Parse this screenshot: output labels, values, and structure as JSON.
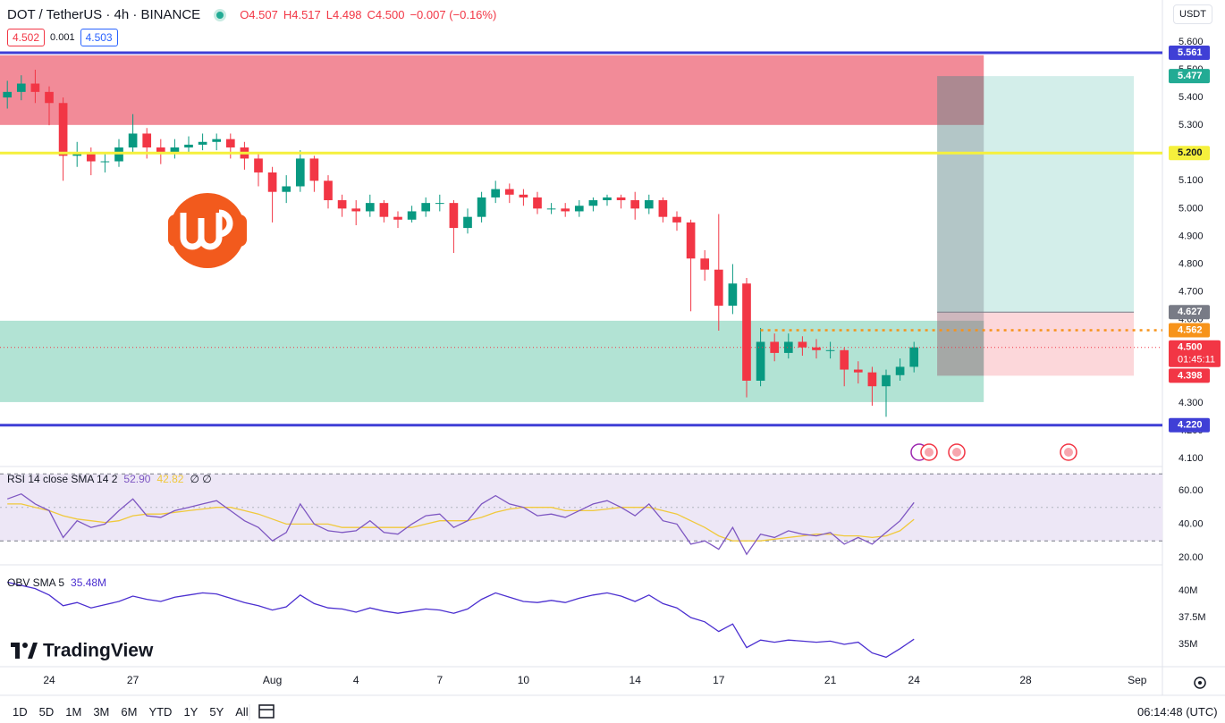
{
  "header": {
    "symbol": "DOT / TetherUS · 4h · BINANCE",
    "ohlc": [
      "O4.507",
      "H4.517",
      "L4.498",
      "C4.500",
      "−0.007 (−0.16%)"
    ],
    "bid": "4.502",
    "spread": "0.001",
    "ask": "4.503",
    "currency": "USDT"
  },
  "chart_data": [
    {
      "type": "candlestick",
      "x": [
        -1.5,
        -1,
        -0.5,
        0,
        0.5,
        1,
        1.5,
        2,
        2.5,
        3,
        3.5,
        4,
        4.5,
        5,
        5.5,
        6,
        6.5,
        7,
        7.5,
        8,
        8.5,
        9,
        9.5,
        10,
        10.5,
        11,
        11.5,
        12,
        12.5,
        13,
        13.5,
        14,
        14.5,
        15,
        15.5,
        16,
        16.5,
        17,
        17.5,
        18,
        18.5,
        19,
        19.5,
        20,
        20.5,
        21,
        21.5,
        22,
        22.5,
        23,
        23.5,
        24,
        24.5,
        25,
        25.5,
        26,
        26.5,
        27,
        27.5,
        28,
        28.5,
        29,
        29.5,
        30,
        30.5,
        31
      ],
      "open": [
        5.4,
        5.42,
        5.45,
        5.42,
        5.38,
        5.19,
        5.2,
        5.17,
        5.17,
        5.22,
        5.27,
        5.22,
        5.2,
        5.22,
        5.23,
        5.24,
        5.25,
        5.22,
        5.18,
        5.13,
        5.06,
        5.08,
        5.18,
        5.1,
        5.03,
        5.0,
        4.99,
        5.02,
        4.97,
        4.96,
        4.99,
        5.02,
        5.02,
        4.93,
        4.97,
        5.04,
        5.07,
        5.05,
        5.04,
        5.0,
        5.0,
        4.99,
        5.01,
        5.03,
        5.04,
        5.03,
        5.0,
        5.03,
        4.97,
        4.95,
        4.82,
        4.78,
        4.65,
        4.73,
        4.38,
        4.52,
        4.48,
        4.52,
        4.5,
        4.49,
        4.49,
        4.42,
        4.41,
        4.36,
        4.4,
        4.43
      ],
      "high": [
        5.46,
        5.48,
        5.5,
        5.44,
        5.4,
        5.24,
        5.22,
        5.2,
        5.25,
        5.34,
        5.29,
        5.25,
        5.25,
        5.26,
        5.27,
        5.27,
        5.27,
        5.24,
        5.2,
        5.15,
        5.12,
        5.21,
        5.19,
        5.12,
        5.05,
        5.03,
        5.05,
        5.03,
        4.99,
        5.01,
        5.04,
        5.05,
        5.03,
        5.0,
        5.06,
        5.1,
        5.09,
        5.07,
        5.06,
        5.02,
        5.02,
        5.03,
        5.04,
        5.05,
        5.05,
        5.06,
        5.05,
        5.04,
        4.99,
        4.96,
        4.85,
        4.98,
        4.8,
        4.75,
        4.57,
        4.55,
        4.55,
        4.54,
        4.53,
        4.52,
        4.5,
        4.45,
        4.43,
        4.42,
        4.46,
        4.52
      ],
      "low": [
        5.36,
        5.39,
        5.38,
        5.3,
        5.1,
        5.15,
        5.12,
        5.13,
        5.15,
        5.2,
        5.18,
        5.16,
        5.18,
        5.2,
        5.21,
        5.21,
        5.18,
        5.14,
        5.08,
        4.95,
        5.02,
        5.06,
        5.06,
        5.0,
        4.97,
        4.94,
        4.97,
        4.95,
        4.93,
        4.95,
        4.97,
        4.99,
        4.84,
        4.91,
        4.95,
        5.02,
        5.02,
        5.01,
        4.98,
        4.98,
        4.97,
        4.97,
        4.99,
        5.01,
        5.0,
        4.96,
        4.98,
        4.95,
        4.92,
        4.63,
        4.74,
        4.56,
        4.62,
        4.32,
        4.36,
        4.45,
        4.46,
        4.47,
        4.46,
        4.46,
        4.36,
        4.37,
        4.29,
        4.25,
        4.38,
        4.41
      ],
      "close": [
        5.42,
        5.45,
        5.42,
        5.38,
        5.19,
        5.2,
        5.17,
        5.17,
        5.22,
        5.27,
        5.22,
        5.2,
        5.22,
        5.23,
        5.24,
        5.25,
        5.22,
        5.18,
        5.13,
        5.06,
        5.08,
        5.18,
        5.1,
        5.03,
        5.0,
        4.99,
        5.02,
        4.97,
        4.96,
        4.99,
        5.02,
        5.02,
        4.93,
        4.97,
        5.04,
        5.07,
        5.05,
        5.04,
        5.0,
        5.0,
        4.99,
        5.01,
        5.03,
        5.04,
        5.03,
        5.0,
        5.03,
        4.97,
        4.95,
        4.82,
        4.78,
        4.65,
        4.73,
        4.38,
        4.52,
        4.48,
        4.52,
        4.5,
        4.49,
        4.49,
        4.42,
        4.41,
        4.36,
        4.4,
        4.43,
        4.5
      ],
      "colors": {
        "up": "#089981",
        "down": "#f23645"
      },
      "xlim": [
        -1.763,
        39.904
      ],
      "xticks": [
        {
          "value": 0,
          "label": "24"
        },
        {
          "value": 3,
          "label": "27"
        },
        {
          "value": 8,
          "label": "Aug"
        },
        {
          "value": 11,
          "label": "4"
        },
        {
          "value": 14,
          "label": "7"
        },
        {
          "value": 17,
          "label": "10"
        },
        {
          "value": 21,
          "label": "14"
        },
        {
          "value": 24,
          "label": "17"
        },
        {
          "value": 28,
          "label": "21"
        },
        {
          "value": 31,
          "label": "24"
        },
        {
          "value": 35,
          "label": "28"
        },
        {
          "value": 39,
          "label": "Sep"
        }
      ],
      "ylim": [
        4.071,
        5.751
      ],
      "yticks": [
        {
          "value": 4.1,
          "label": "4.100"
        },
        {
          "value": 4.2,
          "label": "4.200"
        },
        {
          "value": 4.3,
          "label": "4.300"
        },
        {
          "value": 4.4,
          "label": "4.400"
        },
        {
          "value": 4.5,
          "label": "4.500"
        },
        {
          "value": 4.6,
          "label": "4.600"
        },
        {
          "value": 4.7,
          "label": "4.700"
        },
        {
          "value": 4.8,
          "label": "4.800"
        },
        {
          "value": 4.9,
          "label": "4.900"
        },
        {
          "value": 5.0,
          "label": "5.000"
        },
        {
          "value": 5.1,
          "label": "5.100"
        },
        {
          "value": 5.2,
          "label": "5.200"
        },
        {
          "value": 5.3,
          "label": "5.300"
        },
        {
          "value": 5.4,
          "label": "5.400"
        },
        {
          "value": 5.5,
          "label": "5.500"
        },
        {
          "value": 5.6,
          "label": "5.600"
        }
      ],
      "zones": [
        {
          "top": 5.552,
          "bottom": 5.301,
          "x_end": 33.5,
          "color": "#f28b98"
        },
        {
          "top": 4.596,
          "bottom": 4.303,
          "x_end": 33.5,
          "color": "#b2e3d4"
        }
      ],
      "levels": [
        {
          "value": 5.561,
          "label": "5.561",
          "color": "#3f3fd6",
          "style": "solid"
        },
        {
          "value": 5.2,
          "label": "5.200",
          "color": "#f5f03c",
          "style": "solid",
          "text_color": "#131722"
        },
        {
          "value": 4.562,
          "label": "4.562",
          "color": "#f7931a",
          "style": "dotted",
          "x_start": 25.5
        },
        {
          "value": 4.5,
          "label": "4.500",
          "color": "#f23645",
          "style": "dotted-thin",
          "countdown": "01:45:11"
        },
        {
          "value": 4.22,
          "label": "4.220",
          "color": "#3f3fd6",
          "style": "solid"
        }
      ],
      "position": {
        "x_start": 31.83,
        "x_end": 38.88,
        "target": {
          "value": 5.477,
          "label": "5.477",
          "color": "#22ab94"
        },
        "entry": {
          "value": 4.627,
          "label": "4.627",
          "color": "#787b86"
        },
        "stop": {
          "value": 4.398,
          "label": "4.398",
          "color": "#f23645"
        }
      }
    },
    {
      "type": "line",
      "title": "RSI 14 close SMA 14 2",
      "series": [
        {
          "color": "#7e57c2",
          "last_label": "52.90",
          "values": [
            55,
            58,
            52,
            48,
            32,
            42,
            38,
            40,
            48,
            55,
            45,
            44,
            48,
            50,
            52,
            54,
            48,
            42,
            38,
            30,
            35,
            52,
            40,
            36,
            35,
            36,
            42,
            35,
            34,
            40,
            45,
            46,
            38,
            42,
            52,
            57,
            52,
            50,
            45,
            46,
            44,
            48,
            52,
            54,
            50,
            45,
            52,
            42,
            40,
            28,
            30,
            25,
            38,
            22,
            34,
            32,
            36,
            34,
            33,
            35,
            28,
            32,
            28,
            35,
            42,
            52.9
          ]
        },
        {
          "color": "#f0c93c",
          "last_label": "42.82",
          "values": [
            52,
            52,
            50,
            48,
            45,
            43,
            42,
            41,
            42,
            45,
            46,
            46,
            47,
            48,
            49,
            50,
            50,
            48,
            46,
            43,
            40,
            40,
            40,
            40,
            38,
            38,
            38,
            38,
            38,
            38,
            40,
            42,
            42,
            42,
            44,
            47,
            49,
            50,
            50,
            50,
            48,
            48,
            48,
            49,
            50,
            50,
            50,
            48,
            46,
            42,
            38,
            33,
            30,
            30,
            30,
            31,
            32,
            33,
            34,
            34,
            33,
            33,
            32,
            33,
            36,
            42.82
          ]
        }
      ],
      "extra_label": "∅ ∅",
      "band": [
        30,
        70
      ],
      "midline": 50,
      "band_color": "#ede7f6",
      "ylim": [
        15.7,
        70.1
      ],
      "yticks": [
        {
          "value": 20,
          "label": "20.00"
        },
        {
          "value": 40,
          "label": "40.00"
        },
        {
          "value": 60,
          "label": "60.00"
        }
      ]
    },
    {
      "type": "line",
      "title": "OBV SMA 5",
      "series": [
        {
          "color": "#4b2fd0",
          "last_label": "35.48M",
          "values": [
            40.8,
            40.5,
            40.2,
            39.6,
            38.6,
            38.9,
            38.4,
            38.7,
            39.0,
            39.5,
            39.2,
            39.0,
            39.4,
            39.6,
            39.8,
            39.7,
            39.3,
            38.9,
            38.6,
            38.2,
            38.5,
            39.6,
            38.8,
            38.4,
            38.3,
            38.0,
            38.4,
            38.1,
            37.9,
            38.1,
            38.3,
            38.2,
            37.9,
            38.3,
            39.2,
            39.8,
            39.4,
            39.0,
            38.9,
            39.1,
            38.9,
            39.3,
            39.6,
            39.8,
            39.5,
            39.0,
            39.6,
            38.8,
            38.4,
            37.5,
            37.1,
            36.2,
            36.9,
            34.7,
            35.4,
            35.2,
            35.4,
            35.3,
            35.2,
            35.3,
            35.0,
            35.2,
            34.2,
            33.8,
            34.6,
            35.48
          ]
        }
      ],
      "ylim": [
        33.0,
        41.75
      ],
      "yticks": [
        {
          "value": 35,
          "label": "35M"
        },
        {
          "value": 37.5,
          "label": "37.5M"
        },
        {
          "value": 40,
          "label": "40M"
        }
      ]
    }
  ],
  "brand": "TradingView",
  "toolbar": {
    "ranges": [
      "1D",
      "5D",
      "1M",
      "3M",
      "6M",
      "YTD",
      "1Y",
      "5Y",
      "All"
    ],
    "time": "06:14:48 (UTC)"
  }
}
